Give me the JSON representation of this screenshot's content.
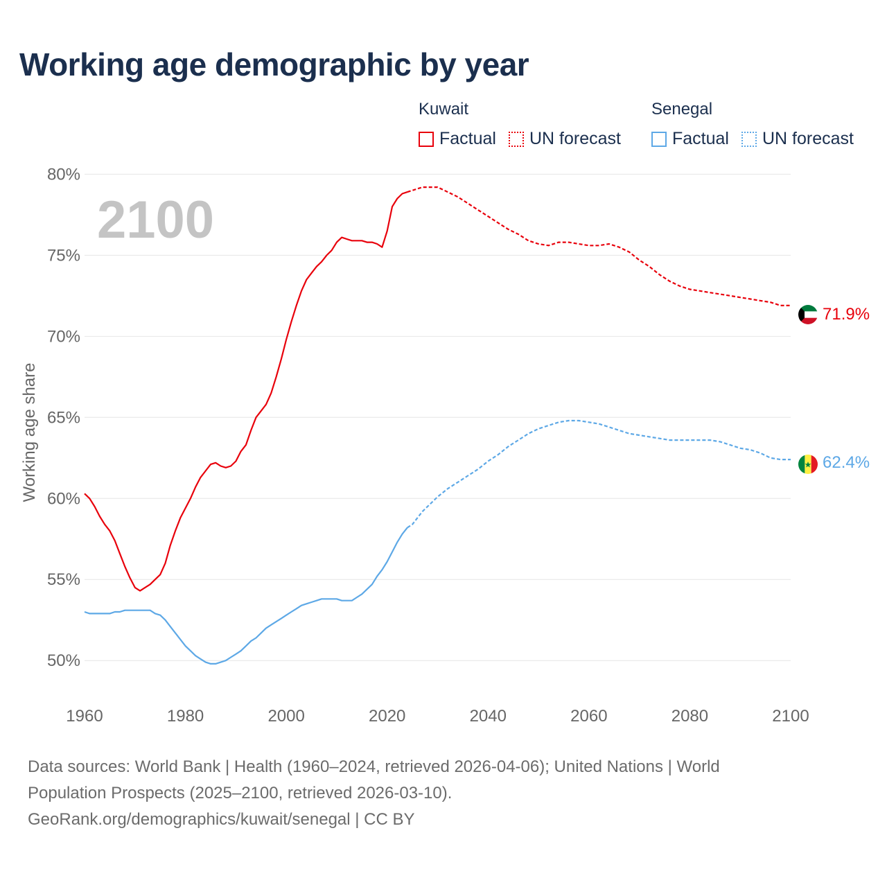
{
  "title": "Working age demographic by year",
  "legend": {
    "kuwait": {
      "title": "Kuwait",
      "factual": "Factual",
      "forecast": "UN forecast"
    },
    "senegal": {
      "title": "Senegal",
      "factual": "Factual",
      "forecast": "UN forecast"
    }
  },
  "big_year": "2100",
  "end_labels": {
    "kuwait": "71.9%",
    "senegal": "62.4%"
  },
  "colors": {
    "kuwait": "#e8000b",
    "senegal": "#5da8e6",
    "title": "#1b2f4e",
    "grid": "#e6e6e6",
    "axis_text": "#666666"
  },
  "footer": {
    "line1": "Data sources: World Bank | Health (1960–2024, retrieved 2026-04-06); United Nations | World",
    "line2": "Population Prospects (2025–2100, retrieved 2026-03-10).",
    "line3": "GeoRank.org/demographics/kuwait/senegal | CC BY"
  },
  "chart_data": {
    "type": "line",
    "title": "Working age demographic by year",
    "xlabel": "",
    "ylabel": "Working age share",
    "xlim": [
      1960,
      2100
    ],
    "ylim": [
      48,
      81
    ],
    "x_ticks": [
      1960,
      1980,
      2000,
      2020,
      2040,
      2060,
      2080,
      2100
    ],
    "y_ticks": [
      50,
      55,
      60,
      65,
      70,
      75,
      80
    ],
    "y_tick_labels": [
      "50%",
      "55%",
      "60%",
      "65%",
      "70%",
      "75%",
      "80%"
    ],
    "factual_end_year": 2024,
    "series": [
      {
        "name": "Kuwait",
        "x": [
          1960,
          1961,
          1962,
          1963,
          1964,
          1965,
          1966,
          1967,
          1968,
          1969,
          1970,
          1971,
          1972,
          1973,
          1974,
          1975,
          1976,
          1977,
          1978,
          1979,
          1980,
          1981,
          1982,
          1983,
          1984,
          1985,
          1986,
          1987,
          1988,
          1989,
          1990,
          1991,
          1992,
          1993,
          1994,
          1995,
          1996,
          1997,
          1998,
          1999,
          2000,
          2001,
          2002,
          2003,
          2004,
          2005,
          2006,
          2007,
          2008,
          2009,
          2010,
          2011,
          2012,
          2013,
          2014,
          2015,
          2016,
          2017,
          2018,
          2019,
          2020,
          2021,
          2022,
          2023,
          2024,
          2025,
          2026,
          2027,
          2028,
          2029,
          2030,
          2032,
          2034,
          2036,
          2038,
          2040,
          2042,
          2044,
          2046,
          2048,
          2050,
          2052,
          2054,
          2056,
          2058,
          2060,
          2062,
          2064,
          2066,
          2068,
          2070,
          2072,
          2074,
          2076,
          2078,
          2080,
          2082,
          2084,
          2086,
          2088,
          2090,
          2092,
          2094,
          2096,
          2098,
          2100
        ],
        "values": [
          60.3,
          60.0,
          59.5,
          58.9,
          58.4,
          58.0,
          57.4,
          56.6,
          55.8,
          55.1,
          54.5,
          54.3,
          54.5,
          54.7,
          55.0,
          55.3,
          56.0,
          57.1,
          58.0,
          58.8,
          59.4,
          60.0,
          60.7,
          61.3,
          61.7,
          62.1,
          62.2,
          62.0,
          61.9,
          62.0,
          62.3,
          62.9,
          63.3,
          64.2,
          65.0,
          65.4,
          65.8,
          66.5,
          67.5,
          68.6,
          69.8,
          70.9,
          71.9,
          72.8,
          73.5,
          73.9,
          74.3,
          74.6,
          75.0,
          75.3,
          75.8,
          76.1,
          76.0,
          75.9,
          75.9,
          75.9,
          75.8,
          75.8,
          75.7,
          75.5,
          76.5,
          78.0,
          78.5,
          78.8,
          78.9,
          79.0,
          79.1,
          79.2,
          79.2,
          79.2,
          79.2,
          78.9,
          78.6,
          78.2,
          77.8,
          77.4,
          77.0,
          76.6,
          76.3,
          75.9,
          75.7,
          75.6,
          75.8,
          75.8,
          75.7,
          75.6,
          75.6,
          75.7,
          75.5,
          75.2,
          74.7,
          74.3,
          73.8,
          73.4,
          73.1,
          72.9,
          72.8,
          72.7,
          72.6,
          72.5,
          72.4,
          72.3,
          72.2,
          72.1,
          71.9,
          71.9
        ]
      },
      {
        "name": "Senegal",
        "x": [
          1960,
          1961,
          1962,
          1963,
          1964,
          1965,
          1966,
          1967,
          1968,
          1969,
          1970,
          1971,
          1972,
          1973,
          1974,
          1975,
          1976,
          1977,
          1978,
          1979,
          1980,
          1981,
          1982,
          1983,
          1984,
          1985,
          1986,
          1987,
          1988,
          1989,
          1990,
          1991,
          1992,
          1993,
          1994,
          1995,
          1996,
          1997,
          1998,
          1999,
          2000,
          2001,
          2002,
          2003,
          2004,
          2005,
          2006,
          2007,
          2008,
          2009,
          2010,
          2011,
          2012,
          2013,
          2014,
          2015,
          2016,
          2017,
          2018,
          2019,
          2020,
          2021,
          2022,
          2023,
          2024,
          2025,
          2026,
          2027,
          2028,
          2029,
          2030,
          2032,
          2034,
          2036,
          2038,
          2040,
          2042,
          2044,
          2046,
          2048,
          2050,
          2052,
          2054,
          2056,
          2058,
          2060,
          2062,
          2064,
          2066,
          2068,
          2070,
          2072,
          2074,
          2076,
          2078,
          2080,
          2082,
          2084,
          2086,
          2088,
          2090,
          2092,
          2094,
          2096,
          2098,
          2100
        ],
        "values": [
          53.0,
          52.9,
          52.9,
          52.9,
          52.9,
          52.9,
          53.0,
          53.0,
          53.1,
          53.1,
          53.1,
          53.1,
          53.1,
          53.1,
          52.9,
          52.8,
          52.5,
          52.1,
          51.7,
          51.3,
          50.9,
          50.6,
          50.3,
          50.1,
          49.9,
          49.8,
          49.8,
          49.9,
          50.0,
          50.2,
          50.4,
          50.6,
          50.9,
          51.2,
          51.4,
          51.7,
          52.0,
          52.2,
          52.4,
          52.6,
          52.8,
          53.0,
          53.2,
          53.4,
          53.5,
          53.6,
          53.7,
          53.8,
          53.8,
          53.8,
          53.8,
          53.7,
          53.7,
          53.7,
          53.9,
          54.1,
          54.4,
          54.7,
          55.2,
          55.6,
          56.1,
          56.7,
          57.3,
          57.8,
          58.2,
          58.4,
          58.8,
          59.2,
          59.5,
          59.8,
          60.1,
          60.6,
          61.0,
          61.4,
          61.8,
          62.3,
          62.7,
          63.2,
          63.6,
          64.0,
          64.3,
          64.5,
          64.7,
          64.8,
          64.8,
          64.7,
          64.6,
          64.4,
          64.2,
          64.0,
          63.9,
          63.8,
          63.7,
          63.6,
          63.6,
          63.6,
          63.6,
          63.6,
          63.5,
          63.3,
          63.1,
          63.0,
          62.8,
          62.5,
          62.4,
          62.4
        ]
      }
    ],
    "annotations": [
      "2100"
    ]
  }
}
